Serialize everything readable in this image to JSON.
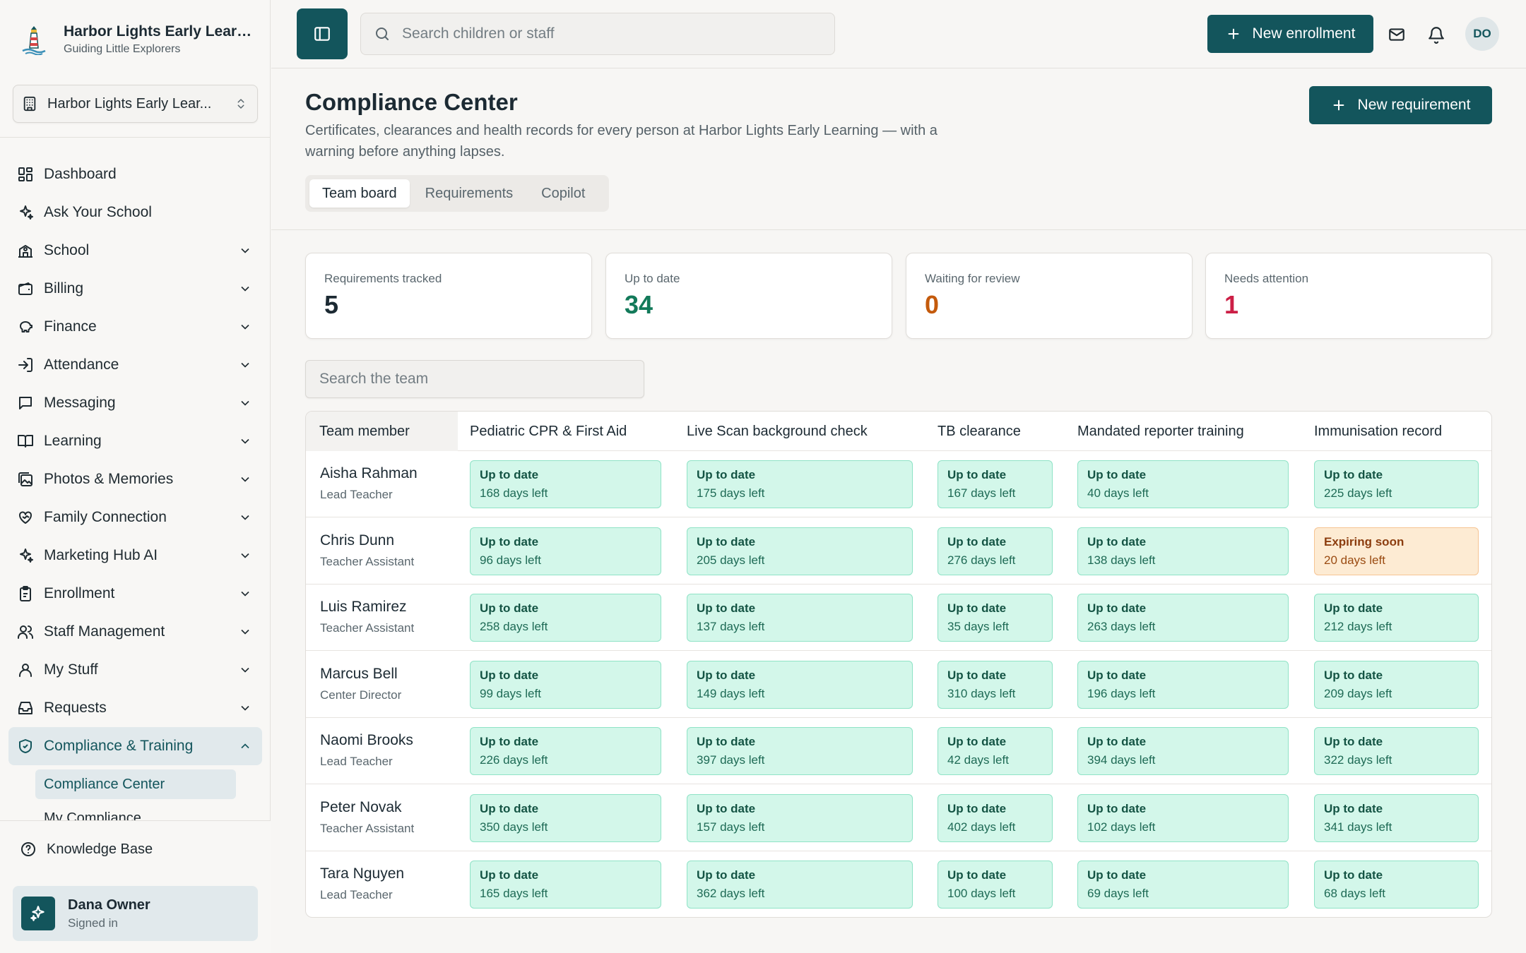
{
  "brand": {
    "name": "Harbor Lights Early Learn...",
    "tagline": "Guiding Little Explorers"
  },
  "school_selector": {
    "label": "Harbor Lights Early Lear..."
  },
  "nav": [
    {
      "label": "Dashboard",
      "icon": "dashboard-icon",
      "expandable": false
    },
    {
      "label": "Ask Your School",
      "icon": "sparkles-icon",
      "expandable": false
    },
    {
      "label": "School",
      "icon": "school-icon",
      "expandable": true
    },
    {
      "label": "Billing",
      "icon": "wallet-icon",
      "expandable": true
    },
    {
      "label": "Finance",
      "icon": "piggy-bank-icon",
      "expandable": true
    },
    {
      "label": "Attendance",
      "icon": "sign-in-icon",
      "expandable": true
    },
    {
      "label": "Messaging",
      "icon": "message-icon",
      "expandable": true
    },
    {
      "label": "Learning",
      "icon": "book-icon",
      "expandable": true
    },
    {
      "label": "Photos & Memories",
      "icon": "images-icon",
      "expandable": true
    },
    {
      "label": "Family Connection",
      "icon": "heart-handshake-icon",
      "expandable": true
    },
    {
      "label": "Marketing Hub AI",
      "icon": "sparkles-icon",
      "expandable": true
    },
    {
      "label": "Enrollment",
      "icon": "clipboard-icon",
      "expandable": true
    },
    {
      "label": "Staff Management",
      "icon": "users-icon",
      "expandable": true
    },
    {
      "label": "My Stuff",
      "icon": "user-icon",
      "expandable": true
    },
    {
      "label": "Requests",
      "icon": "inbox-icon",
      "expandable": true
    },
    {
      "label": "Compliance & Training",
      "icon": "shield-check-icon",
      "expandable": true,
      "expanded": true,
      "active": true
    }
  ],
  "compliance_sub": [
    "Compliance Center",
    "My Compliance"
  ],
  "knowledge_base": "Knowledge Base",
  "user": {
    "name": "Dana Owner",
    "status": "Signed in",
    "initials": "DO"
  },
  "topbar": {
    "search_placeholder": "Search children or staff",
    "new_enrollment": "New enrollment"
  },
  "page": {
    "title": "Compliance Center",
    "description": "Certificates, clearances and health records for every person at Harbor Lights Early Learning — with a warning before anything lapses.",
    "new_requirement": "New requirement",
    "tabs": [
      "Team board",
      "Requirements",
      "Copilot"
    ],
    "active_tab": 0
  },
  "stats": [
    {
      "label": "Requirements tracked",
      "value": "5",
      "color": "#1c2a33"
    },
    {
      "label": "Up to date",
      "value": "34",
      "color": "#137a5a"
    },
    {
      "label": "Waiting for review",
      "value": "0",
      "color": "#c45a0c"
    },
    {
      "label": "Needs attention",
      "value": "1",
      "color": "#cc1f46"
    }
  ],
  "team_search_placeholder": "Search the team",
  "table": {
    "columns": [
      "Team member",
      "Pediatric CPR & First Aid",
      "Live Scan background check",
      "TB clearance",
      "Mandated reporter training",
      "Immunisation record"
    ],
    "rows": [
      {
        "name": "Aisha Rahman",
        "role": "Lead Teacher",
        "cells": [
          {
            "status": "Up to date",
            "days": "168 days left"
          },
          {
            "status": "Up to date",
            "days": "175 days left"
          },
          {
            "status": "Up to date",
            "days": "167 days left"
          },
          {
            "status": "Up to date",
            "days": "40 days left"
          },
          {
            "status": "Up to date",
            "days": "225 days left"
          }
        ]
      },
      {
        "name": "Chris Dunn",
        "role": "Teacher Assistant",
        "cells": [
          {
            "status": "Up to date",
            "days": "96 days left"
          },
          {
            "status": "Up to date",
            "days": "205 days left"
          },
          {
            "status": "Up to date",
            "days": "276 days left"
          },
          {
            "status": "Up to date",
            "days": "138 days left"
          },
          {
            "status": "Expiring soon",
            "days": "20 days left",
            "warn": true
          }
        ]
      },
      {
        "name": "Luis Ramirez",
        "role": "Teacher Assistant",
        "cells": [
          {
            "status": "Up to date",
            "days": "258 days left"
          },
          {
            "status": "Up to date",
            "days": "137 days left"
          },
          {
            "status": "Up to date",
            "days": "35 days left"
          },
          {
            "status": "Up to date",
            "days": "263 days left"
          },
          {
            "status": "Up to date",
            "days": "212 days left"
          }
        ]
      },
      {
        "name": "Marcus Bell",
        "role": "Center Director",
        "cells": [
          {
            "status": "Up to date",
            "days": "99 days left"
          },
          {
            "status": "Up to date",
            "days": "149 days left"
          },
          {
            "status": "Up to date",
            "days": "310 days left"
          },
          {
            "status": "Up to date",
            "days": "196 days left"
          },
          {
            "status": "Up to date",
            "days": "209 days left"
          }
        ]
      },
      {
        "name": "Naomi Brooks",
        "role": "Lead Teacher",
        "cells": [
          {
            "status": "Up to date",
            "days": "226 days left"
          },
          {
            "status": "Up to date",
            "days": "397 days left"
          },
          {
            "status": "Up to date",
            "days": "42 days left"
          },
          {
            "status": "Up to date",
            "days": "394 days left"
          },
          {
            "status": "Up to date",
            "days": "322 days left"
          }
        ]
      },
      {
        "name": "Peter Novak",
        "role": "Teacher Assistant",
        "cells": [
          {
            "status": "Up to date",
            "days": "350 days left"
          },
          {
            "status": "Up to date",
            "days": "157 days left"
          },
          {
            "status": "Up to date",
            "days": "402 days left"
          },
          {
            "status": "Up to date",
            "days": "102 days left"
          },
          {
            "status": "Up to date",
            "days": "341 days left"
          }
        ]
      },
      {
        "name": "Tara Nguyen",
        "role": "Lead Teacher",
        "cells": [
          {
            "status": "Up to date",
            "days": "165 days left"
          },
          {
            "status": "Up to date",
            "days": "362 days left"
          },
          {
            "status": "Up to date",
            "days": "100 days left"
          },
          {
            "status": "Up to date",
            "days": "69 days left"
          },
          {
            "status": "Up to date",
            "days": "68 days left"
          }
        ]
      }
    ]
  }
}
